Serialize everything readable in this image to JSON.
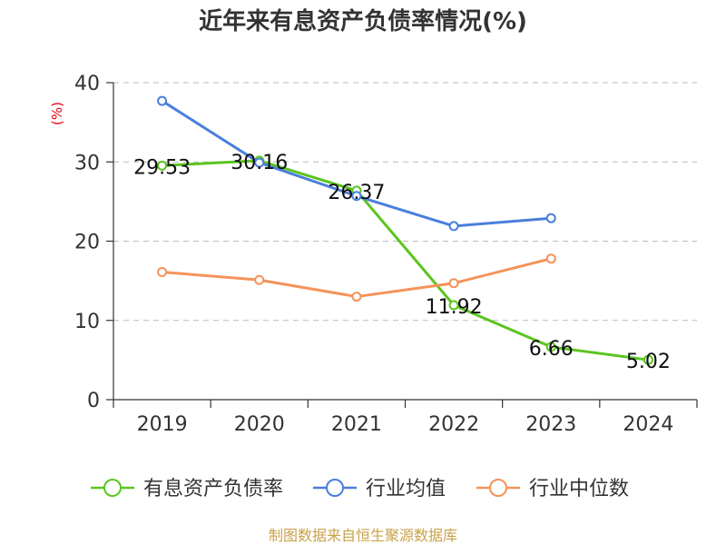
{
  "title": "近年来有息资产负债率情况(%)",
  "unit_label": "(%)",
  "source": "制图数据来自恒生聚源数据库",
  "colors": {
    "debt_ratio": "#5bc51f",
    "industry_mean": "#4a7fdc",
    "industry_median": "#f5925a",
    "grid": "#bbbbbb",
    "axis": "#333333",
    "unit": "#e60012",
    "source": "#c8a24a"
  },
  "chart_data": {
    "type": "line",
    "title": "近年来有息资产负债率情况(%)",
    "xlabel": "",
    "ylabel": "(%)",
    "categories": [
      "2019",
      "2020",
      "2021",
      "2022",
      "2023",
      "2024"
    ],
    "ylim": [
      0,
      40
    ],
    "yticks": [
      0,
      10,
      20,
      30,
      40
    ],
    "grid": true,
    "legend_position": "bottom",
    "series": [
      {
        "key": "debt_ratio",
        "name": "有息资产负债率",
        "values": [
          29.53,
          30.16,
          26.37,
          11.92,
          6.66,
          5.02
        ],
        "labels": [
          "29.53",
          "30.16",
          "26.37",
          "11.92",
          "6.66",
          "5.02"
        ]
      },
      {
        "key": "industry_mean",
        "name": "行业均值",
        "values": [
          37.7,
          29.9,
          25.7,
          21.9,
          22.9,
          null
        ]
      },
      {
        "key": "industry_median",
        "name": "行业中位数",
        "values": [
          16.1,
          15.1,
          13.0,
          14.7,
          17.8,
          null
        ]
      }
    ]
  }
}
